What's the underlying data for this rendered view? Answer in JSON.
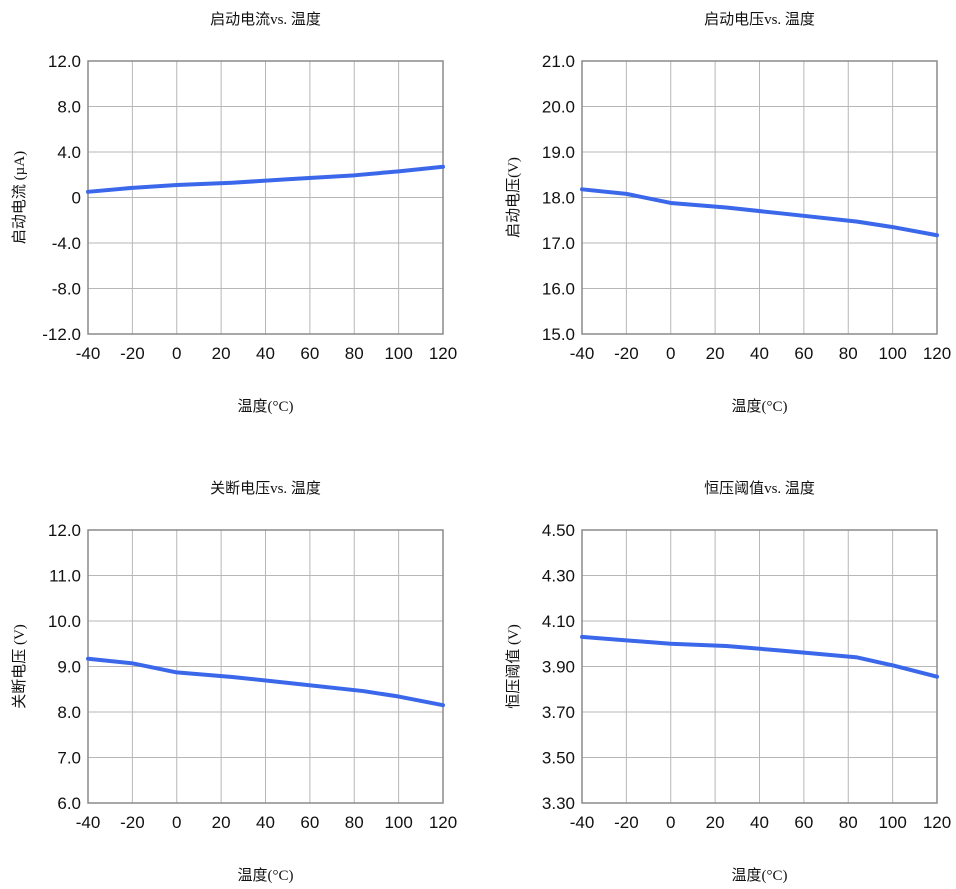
{
  "theme": {
    "line_color": "#3b68ea",
    "grid_color": "#b7b7b7",
    "frame_color": "#8a8a8a"
  },
  "chart_data": [
    {
      "type": "line",
      "title": "启动电流vs. 温度",
      "xlabel": "温度(°C)",
      "ylabel": "启动电流 (µA)",
      "xlim": [
        -40,
        120
      ],
      "ylim": [
        -12,
        12
      ],
      "x_ticks": [
        -40,
        -20,
        0,
        20,
        40,
        60,
        80,
        100,
        120
      ],
      "x_tick_labels": [
        "-40",
        "-20",
        "0",
        "20",
        "40",
        "60",
        "80",
        "100",
        "120"
      ],
      "y_ticks": [
        12,
        8,
        4,
        0,
        -4,
        -8,
        -12
      ],
      "y_tick_labels": [
        "12.0",
        "8.0",
        "4.0",
        "0",
        "-4.0",
        "-8.0",
        "-12.0"
      ],
      "grid": true,
      "series": [
        {
          "x": [
            -40,
            -20,
            0,
            25,
            50,
            80,
            100,
            120
          ],
          "y": [
            0.5,
            0.85,
            1.1,
            1.3,
            1.6,
            1.95,
            2.3,
            2.7
          ]
        }
      ]
    },
    {
      "type": "line",
      "title": "启动电压vs. 温度",
      "xlabel": "温度(°C)",
      "ylabel": "启动电压(V)",
      "xlim": [
        -40,
        120
      ],
      "ylim": [
        15,
        21
      ],
      "x_ticks": [
        -40,
        -20,
        0,
        20,
        40,
        60,
        80,
        100,
        120
      ],
      "x_tick_labels": [
        "-40",
        "-20",
        "0",
        "20",
        "40",
        "60",
        "80",
        "100",
        "120"
      ],
      "y_ticks": [
        21,
        20,
        19,
        18,
        17,
        16,
        15
      ],
      "y_tick_labels": [
        "21.0",
        "20.0",
        "19.0",
        "18.0",
        "17.0",
        "16.0",
        "15.0"
      ],
      "grid": true,
      "series": [
        {
          "x": [
            -40,
            -20,
            0,
            25,
            50,
            84,
            100,
            120
          ],
          "y": [
            18.18,
            18.08,
            17.88,
            17.78,
            17.65,
            17.47,
            17.35,
            17.17
          ]
        }
      ]
    },
    {
      "type": "line",
      "title": "关断电压vs. 温度",
      "xlabel": "温度(°C)",
      "ylabel": "关断电压 (V)",
      "xlim": [
        -40,
        120
      ],
      "ylim": [
        6,
        12
      ],
      "x_ticks": [
        -40,
        -20,
        0,
        20,
        40,
        60,
        80,
        100,
        120
      ],
      "x_tick_labels": [
        "-40",
        "-20",
        "0",
        "20",
        "40",
        "60",
        "80",
        "100",
        "120"
      ],
      "y_ticks": [
        12,
        11,
        10,
        9,
        8,
        7,
        6
      ],
      "y_tick_labels": [
        "12.0",
        "11.0",
        "10.0",
        "9.0",
        "8.0",
        "7.0",
        "6.0"
      ],
      "grid": true,
      "series": [
        {
          "x": [
            -40,
            -20,
            0,
            25,
            50,
            84,
            100,
            120
          ],
          "y": [
            9.17,
            9.07,
            8.87,
            8.77,
            8.64,
            8.46,
            8.34,
            8.15
          ]
        }
      ]
    },
    {
      "type": "line",
      "title": "恒压阈值vs. 温度",
      "xlabel": "温度(°C)",
      "ylabel": "恒压阈值 (V)",
      "xlim": [
        -40,
        120
      ],
      "ylim": [
        3.3,
        4.5
      ],
      "x_ticks": [
        -40,
        -20,
        0,
        20,
        40,
        60,
        80,
        100,
        120
      ],
      "x_tick_labels": [
        "-40",
        "-20",
        "0",
        "20",
        "40",
        "60",
        "80",
        "100",
        "120"
      ],
      "y_ticks": [
        4.5,
        4.3,
        4.1,
        3.9,
        3.7,
        3.5,
        3.3
      ],
      "y_tick_labels": [
        "4.50",
        "4.30",
        "4.10",
        "3.90",
        "3.70",
        "3.50",
        "3.30"
      ],
      "grid": true,
      "series": [
        {
          "x": [
            -40,
            -20,
            0,
            25,
            50,
            84,
            100,
            120
          ],
          "y": [
            4.03,
            4.015,
            4.0,
            3.99,
            3.97,
            3.94,
            3.905,
            3.855
          ]
        }
      ]
    }
  ]
}
